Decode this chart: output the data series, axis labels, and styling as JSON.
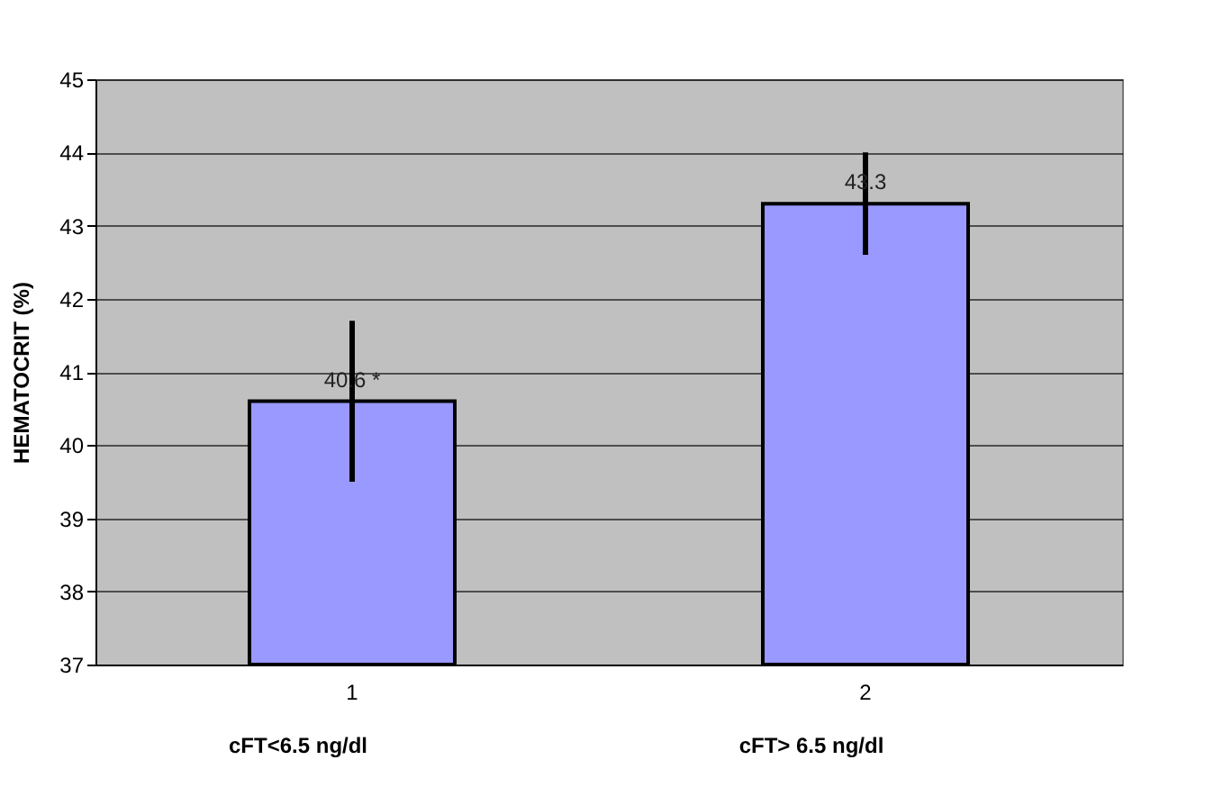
{
  "chart_data": {
    "type": "bar",
    "ylabel": "HEMATOCRIT  (%)",
    "categories": [
      "1",
      "2"
    ],
    "values": [
      40.6,
      43.3
    ],
    "errors": [
      1.1,
      0.7
    ],
    "value_labels": [
      "40.6 *",
      "43.3"
    ],
    "color": "#9999ff",
    "ylim": [
      37,
      45
    ],
    "yticks": [
      37,
      38,
      39,
      40,
      41,
      42,
      43,
      44,
      45
    ],
    "grid": "y",
    "annotations": [
      "cFT<6.5 ng/dl",
      "cFT> 6.5 ng/dl"
    ]
  }
}
